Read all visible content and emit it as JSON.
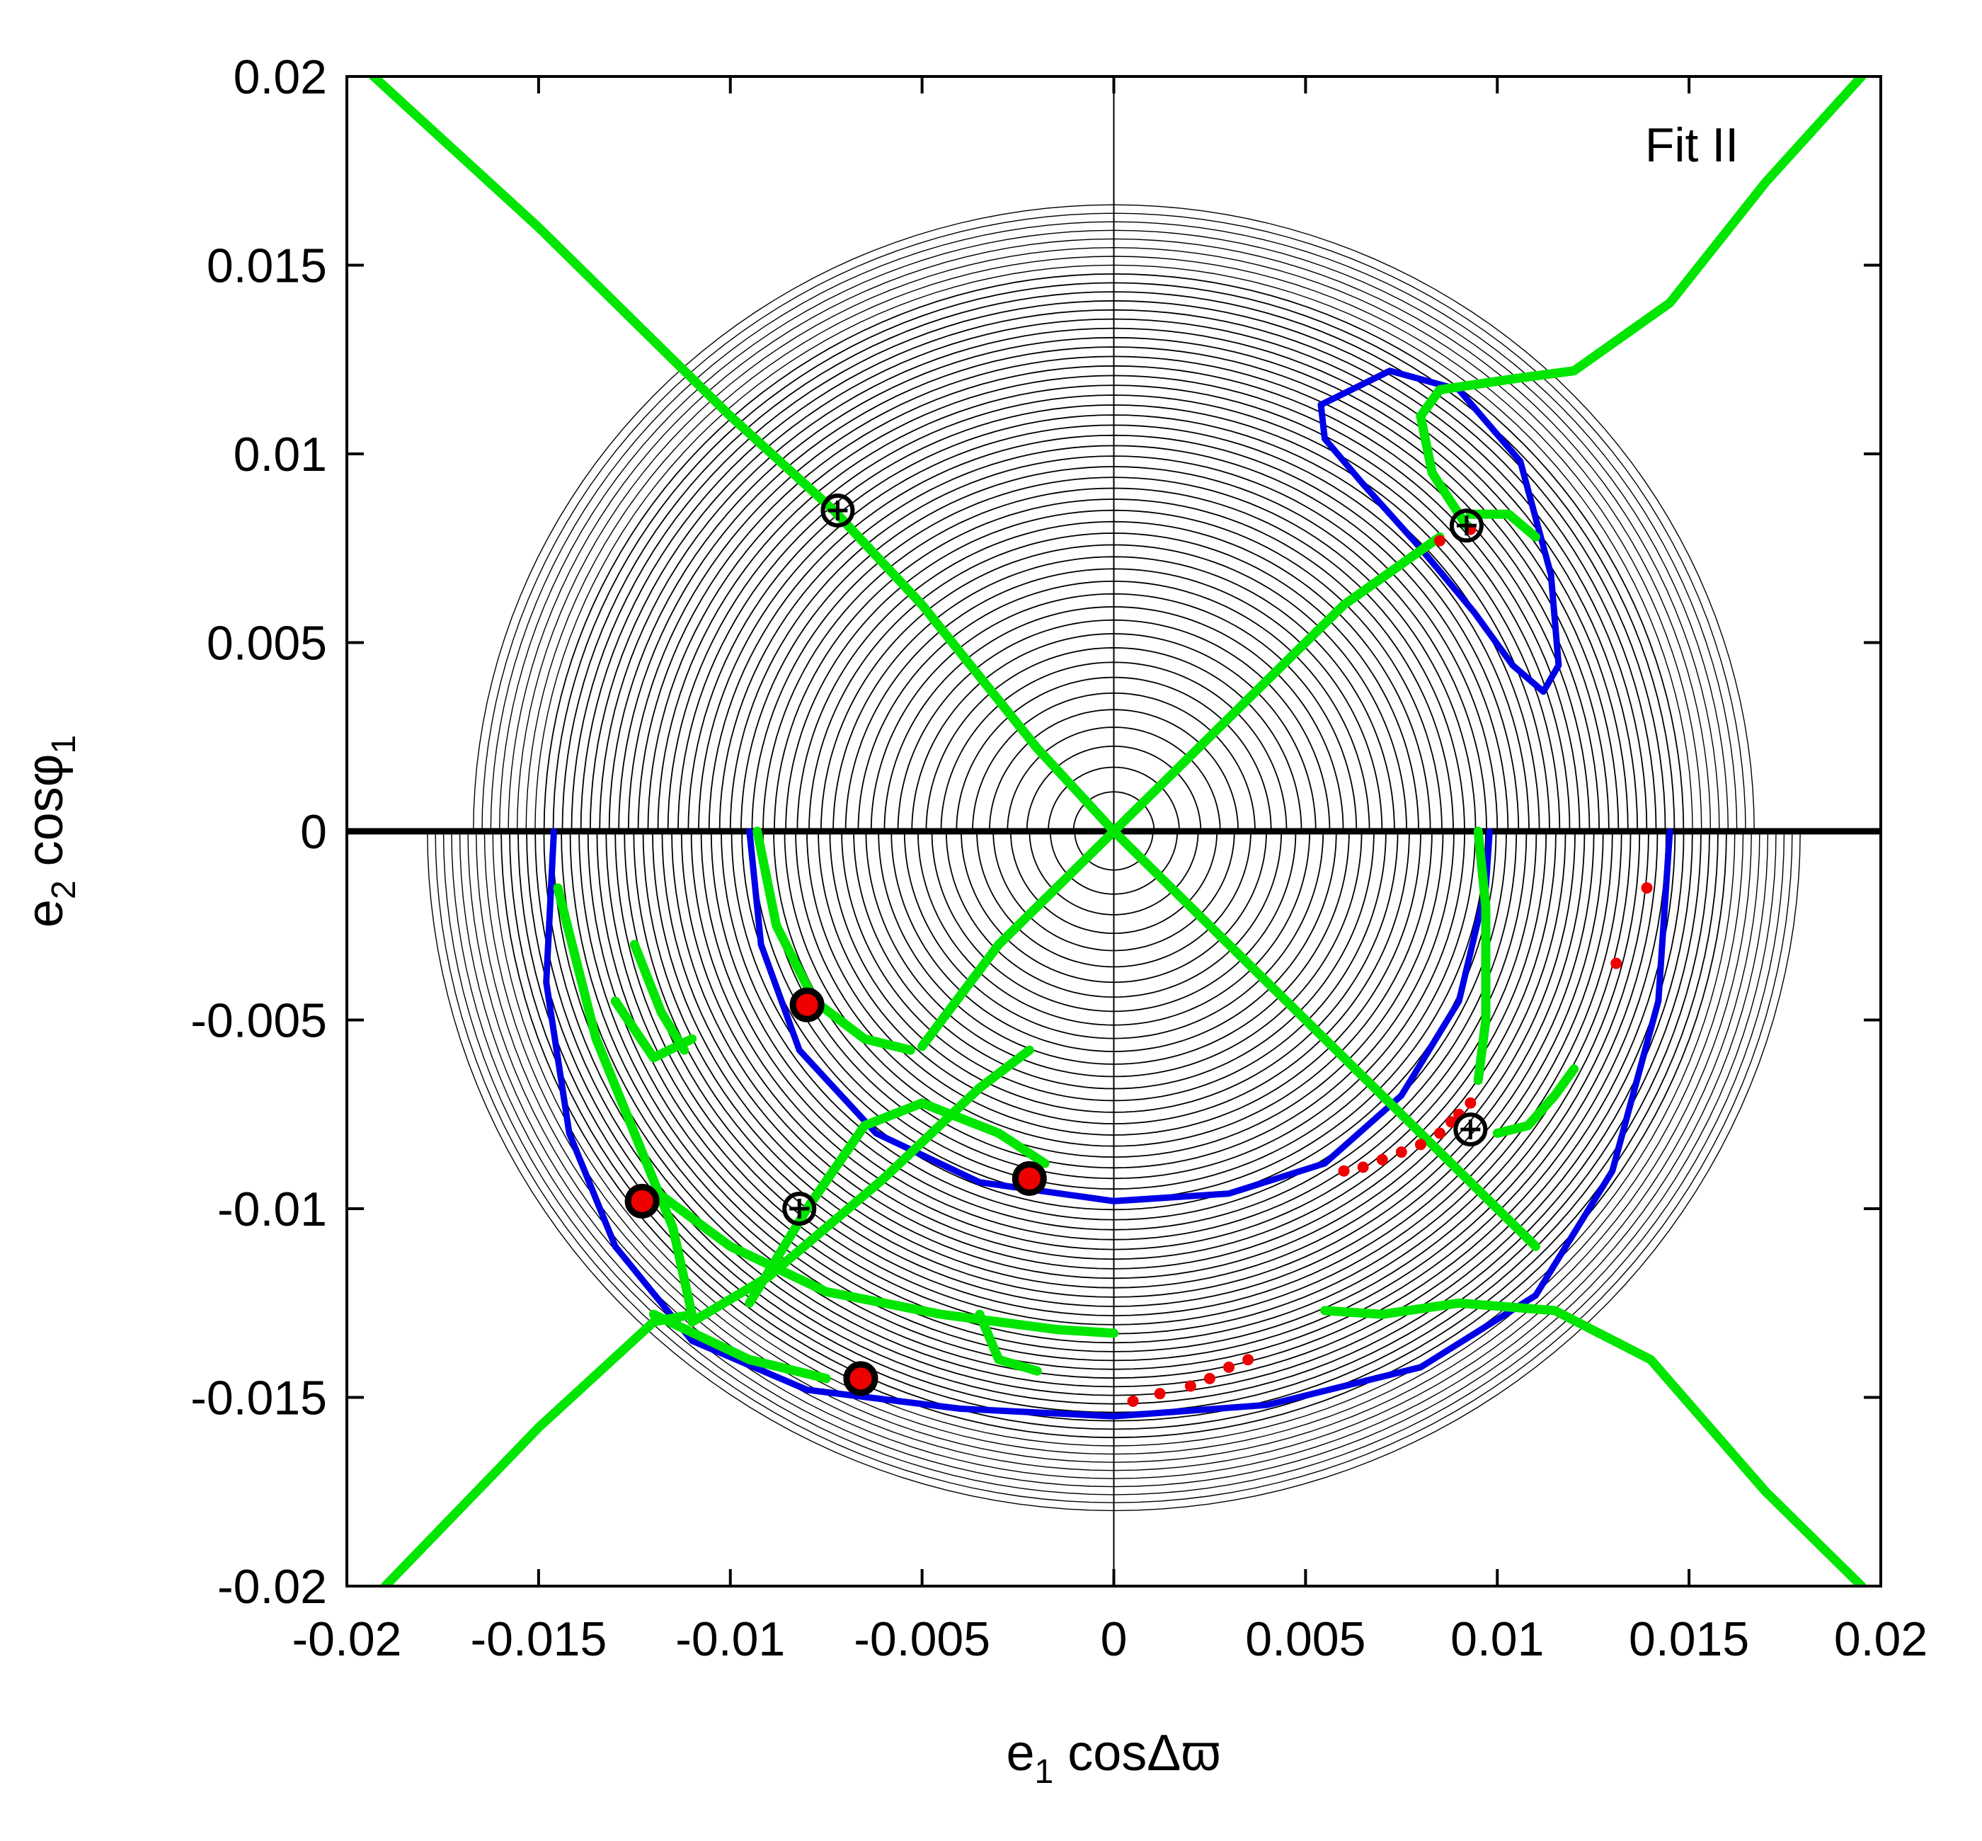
{
  "chart_data": {
    "type": "scatter",
    "xlabel": {
      "base": "e",
      "sub": "1",
      "rest": " cosΔϖ"
    },
    "ylabel": {
      "base": "e",
      "sub": "2",
      "rest": " cosφ",
      "sub2": "1"
    },
    "annotation": "Fit II",
    "xlim": [
      -0.02,
      0.02
    ],
    "ylim": [
      -0.02,
      0.02
    ],
    "xticks": [
      -0.02,
      -0.015,
      -0.01,
      -0.005,
      0,
      0.005,
      0.01,
      0.015,
      0.02
    ],
    "xtick_labels": [
      "-0.02",
      "-0.015",
      "-0.01",
      "-0.005",
      "0",
      "0.005",
      "0.01",
      "0.015",
      "0.02"
    ],
    "yticks": [
      -0.02,
      -0.015,
      -0.01,
      -0.005,
      0,
      0.005,
      0.01,
      0.015,
      0.02
    ],
    "ytick_labels": [
      "-0.02",
      "-0.015",
      "-0.01",
      "-0.005",
      "0",
      "0.005",
      "0.01",
      "0.015",
      "0.02"
    ],
    "grid": false,
    "colors": {
      "contour": "#000000",
      "separatrix": "#0000e6",
      "green": "#00e600",
      "red": "#ee0000",
      "marker_edge": "#000000"
    },
    "upper_region": {
      "center": [
        0,
        0
      ],
      "rx": 0.0167,
      "ry": 0.0166,
      "nlevels": 52
    },
    "lower_region": {
      "center": [
        0,
        0
      ],
      "rx": 0.0179,
      "ry": 0.018,
      "nlevels": 60
    },
    "blue_loops": [
      [
        [
          0.0054,
          0.0113
        ],
        [
          0.0072,
          0.0122
        ],
        [
          0.009,
          0.0117
        ],
        [
          0.0106,
          0.0098
        ],
        [
          0.0114,
          0.0068
        ],
        [
          0.0116,
          0.0044
        ],
        [
          0.0112,
          0.0037
        ],
        [
          0.0104,
          0.0044
        ],
        [
          0.0094,
          0.0058
        ],
        [
          0.008,
          0.0075
        ],
        [
          0.0065,
          0.0092
        ],
        [
          0.0055,
          0.0104
        ],
        [
          0.0054,
          0.0113
        ]
      ]
    ],
    "blue_arcs": [
      [
        [
          -0.0146,
          0
        ],
        [
          -0.0148,
          -0.004
        ],
        [
          -0.0142,
          -0.008
        ],
        [
          -0.013,
          -0.011
        ],
        [
          -0.011,
          -0.0135
        ],
        [
          -0.008,
          -0.0148
        ],
        [
          -0.004,
          -0.0153
        ],
        [
          0.0,
          -0.0155
        ],
        [
          0.004,
          -0.0152
        ],
        [
          0.008,
          -0.0142
        ],
        [
          0.011,
          -0.0123
        ],
        [
          0.013,
          -0.009
        ],
        [
          0.0142,
          -0.0045
        ],
        [
          0.0145,
          0
        ]
      ],
      [
        [
          -0.0095,
          0
        ],
        [
          -0.0092,
          -0.003
        ],
        [
          -0.0082,
          -0.0058
        ],
        [
          -0.0062,
          -0.008
        ],
        [
          -0.0035,
          -0.0093
        ],
        [
          0.0,
          -0.0098
        ],
        [
          0.003,
          -0.0096
        ],
        [
          0.0055,
          -0.0088
        ],
        [
          0.0075,
          -0.007
        ],
        [
          0.009,
          -0.0045
        ],
        [
          0.0097,
          -0.0015
        ],
        [
          0.0098,
          0
        ]
      ]
    ],
    "green_curves": [
      [
        [
          -0.0193,
          0.02
        ],
        [
          -0.015,
          0.016
        ],
        [
          -0.01,
          0.011
        ],
        [
          -0.0073,
          0.0085
        ],
        [
          -0.005,
          0.006
        ],
        [
          -0.002,
          0.0022
        ],
        [
          0.0,
          0.0
        ],
        [
          0.003,
          -0.003
        ],
        [
          0.006,
          -0.006
        ],
        [
          0.009,
          -0.009
        ],
        [
          0.011,
          -0.011
        ]
      ],
      [
        [
          0.0,
          0.0
        ],
        [
          0.003,
          0.003
        ],
        [
          0.006,
          0.006
        ],
        [
          0.0085,
          0.0078
        ]
      ],
      [
        [
          0.0,
          0.0
        ],
        [
          -0.003,
          -0.003
        ],
        [
          -0.005,
          -0.0057
        ]
      ],
      [
        [
          0.0195,
          0.02
        ],
        [
          0.017,
          0.0172
        ],
        [
          0.0145,
          0.014
        ],
        [
          0.012,
          0.0122
        ],
        [
          0.0105,
          0.012
        ],
        [
          0.0085,
          0.0117
        ],
        [
          0.008,
          0.011
        ]
      ],
      [
        [
          0.008,
          0.011
        ],
        [
          0.0083,
          0.0095
        ],
        [
          0.009,
          0.0084
        ],
        [
          0.0092,
          0.0081
        ]
      ],
      [
        [
          0.0093,
          0.0084
        ],
        [
          0.0103,
          0.0084
        ],
        [
          0.011,
          0.0078
        ]
      ],
      [
        [
          0.0095,
          0.0
        ],
        [
          0.0097,
          -0.002
        ],
        [
          0.0097,
          -0.005
        ],
        [
          0.0095,
          -0.0066
        ]
      ],
      [
        [
          0.01,
          -0.008
        ],
        [
          0.0108,
          -0.0078
        ],
        [
          0.0115,
          -0.007
        ],
        [
          0.012,
          -0.0063
        ]
      ],
      [
        [
          -0.0093,
          0.0
        ],
        [
          -0.0088,
          -0.0025
        ],
        [
          -0.0078,
          -0.0045
        ],
        [
          -0.0065,
          -0.0055
        ],
        [
          -0.0053,
          -0.0058
        ]
      ],
      [
        [
          -0.019,
          -0.02
        ],
        [
          -0.015,
          -0.0158
        ],
        [
          -0.012,
          -0.013
        ],
        [
          -0.011,
          -0.0128
        ],
        [
          -0.0115,
          -0.0105
        ],
        [
          -0.0125,
          -0.008
        ],
        [
          -0.0135,
          -0.0055
        ],
        [
          -0.0145,
          -0.0015
        ]
      ],
      [
        [
          -0.013,
          -0.0045
        ],
        [
          -0.012,
          -0.006
        ],
        [
          -0.011,
          -0.0055
        ]
      ],
      [
        [
          -0.0125,
          -0.003
        ],
        [
          -0.0118,
          -0.0048
        ],
        [
          -0.0112,
          -0.0058
        ]
      ],
      [
        [
          -0.011,
          -0.013
        ],
        [
          -0.009,
          -0.0118
        ],
        [
          -0.006,
          -0.0092
        ],
        [
          -0.0035,
          -0.0068
        ],
        [
          -0.0022,
          -0.0058
        ]
      ],
      [
        [
          -0.0095,
          -0.0125
        ],
        [
          -0.008,
          -0.01
        ],
        [
          -0.0065,
          -0.0078
        ],
        [
          -0.005,
          -0.0072
        ],
        [
          -0.003,
          -0.008
        ],
        [
          -0.0018,
          -0.0088
        ]
      ],
      [
        [
          -0.012,
          -0.0095
        ],
        [
          -0.01,
          -0.011
        ],
        [
          -0.0075,
          -0.0122
        ],
        [
          -0.0045,
          -0.0128
        ],
        [
          -0.0015,
          -0.0132
        ],
        [
          0.0,
          -0.0133
        ]
      ],
      [
        [
          -0.0035,
          -0.0128
        ],
        [
          -0.003,
          -0.014
        ],
        [
          -0.002,
          -0.0143
        ]
      ],
      [
        [
          -0.012,
          -0.0128
        ],
        [
          -0.0095,
          -0.014
        ],
        [
          -0.0075,
          -0.0145
        ]
      ],
      [
        [
          0.0195,
          -0.02
        ],
        [
          0.017,
          -0.0175
        ],
        [
          0.014,
          -0.014
        ],
        [
          0.0115,
          -0.0127
        ],
        [
          0.009,
          -0.0125
        ],
        [
          0.007,
          -0.0128
        ],
        [
          0.0055,
          -0.0127
        ]
      ]
    ],
    "red_points": [
      [
        0.006,
        -0.009
      ],
      [
        0.0065,
        -0.0089
      ],
      [
        0.007,
        -0.0087
      ],
      [
        0.0075,
        -0.0085
      ],
      [
        0.008,
        -0.0083
      ],
      [
        0.0085,
        -0.008
      ],
      [
        0.0088,
        -0.0077
      ],
      [
        0.009,
        -0.0075
      ],
      [
        0.0093,
        -0.0072
      ],
      [
        0.0139,
        -0.0015
      ],
      [
        0.0131,
        -0.0035
      ],
      [
        0.0005,
        -0.0151
      ],
      [
        0.0012,
        -0.0149
      ],
      [
        0.002,
        -0.0147
      ],
      [
        0.0025,
        -0.0145
      ],
      [
        0.003,
        -0.0142
      ],
      [
        0.0035,
        -0.014
      ],
      [
        0.0085,
        0.0077
      ],
      [
        0.0093,
        0.008
      ]
    ],
    "red_markers": [
      [
        -0.008,
        -0.0046
      ],
      [
        -0.0123,
        -0.0098
      ],
      [
        -0.0022,
        -0.0092
      ],
      [
        -0.0066,
        -0.0145
      ]
    ],
    "cross_markers": [
      [
        -0.0072,
        0.0085
      ],
      [
        0.0092,
        0.0081
      ],
      [
        0.0093,
        -0.0079
      ],
      [
        -0.0082,
        -0.01
      ]
    ]
  }
}
